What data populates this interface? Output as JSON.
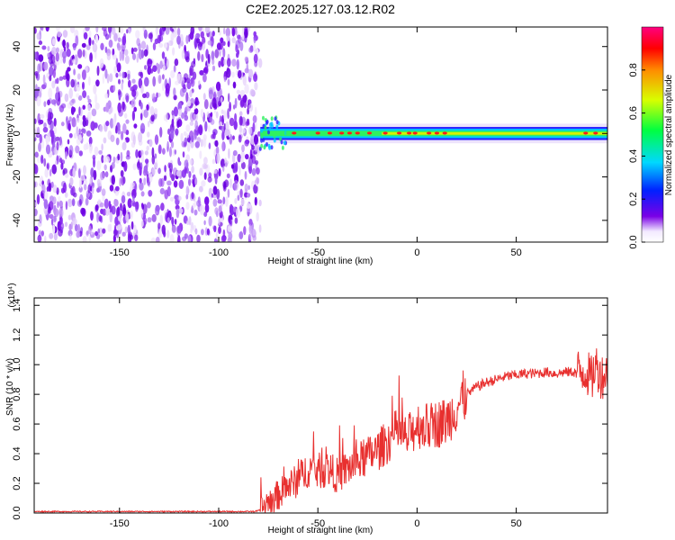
{
  "title": "C2E2.2025.127.03.12.R02",
  "colors": {
    "snr_line": "#e8302f",
    "frame": "#000000",
    "spectrum_base": "#7a00e6"
  },
  "chart_data": [
    {
      "type": "heatmap",
      "title": "C2E2.2025.127.03.12.R02",
      "xlabel": "Height of straight line (km)",
      "ylabel": "Frequency (Hz)",
      "xlim": [
        -193,
        96
      ],
      "ylim": [
        -50,
        49
      ],
      "xticks": [
        -150,
        -100,
        -50,
        0,
        50
      ],
      "xtick_labels": [
        "-150",
        "-100",
        "-50",
        "0",
        "50"
      ],
      "yticks": [
        -40,
        -20,
        0,
        20,
        40
      ],
      "ytick_labels": [
        "-40",
        "-20",
        "0",
        "20",
        "40"
      ],
      "noise_region_x": [
        -193,
        -79
      ],
      "signal_region_x": [
        -79,
        96
      ],
      "signal_center_frequency_hz": 0,
      "signal_halfwidth_hz": 3,
      "colorbar": {
        "label": "Normalized spectral amplitude",
        "range": [
          0,
          1
        ],
        "ticks": [
          0.0,
          0.2,
          0.4,
          0.6,
          0.8
        ],
        "tick_labels": [
          "0.0",
          "0.2",
          "0.4",
          "0.6",
          "0.8"
        ],
        "colormap": "rainbow (purple-blue-cyan-green-yellow-red-magenta)"
      },
      "grid": false
    },
    {
      "type": "line",
      "xlabel": "Height of straight line (km)",
      "ylabel": "SNR (10 * v/v)",
      "y_scale_label": "(x10⁴)",
      "xlim": [
        -193,
        96
      ],
      "ylim": [
        0,
        1.45
      ],
      "xticks": [
        -150,
        -100,
        -50,
        0,
        50
      ],
      "xtick_labels": [
        "-150",
        "-100",
        "-50",
        "0",
        "50"
      ],
      "yticks": [
        0.0,
        0.2,
        0.4,
        0.6,
        0.8,
        1.0,
        1.2,
        1.4
      ],
      "ytick_labels": [
        "0.0",
        "0.2",
        "0.4",
        "0.6",
        "0.8",
        "1.0",
        "1.2",
        "1.4"
      ],
      "grid": false,
      "series": [
        {
          "x": [
            -193,
            -170,
            -150,
            -120,
            -100,
            -90,
            -82,
            -79,
            -75,
            -70,
            -65,
            -60,
            -55,
            -50,
            -45,
            -40,
            -35,
            -30,
            -25,
            -20,
            -15,
            -10,
            -5,
            0,
            5,
            10,
            15,
            20,
            25,
            30,
            35,
            40,
            45,
            50,
            55,
            60,
            65,
            70,
            75,
            80,
            85,
            88,
            90,
            93,
            96
          ],
          "values": [
            0.01,
            0.01,
            0.01,
            0.01,
            0.01,
            0.01,
            0.01,
            0.02,
            0.08,
            0.12,
            0.18,
            0.22,
            0.3,
            0.28,
            0.3,
            0.25,
            0.3,
            0.34,
            0.38,
            0.42,
            0.48,
            0.55,
            0.5,
            0.6,
            0.58,
            0.6,
            0.62,
            0.72,
            0.8,
            0.85,
            0.88,
            0.9,
            0.92,
            0.93,
            0.94,
            0.94,
            0.95,
            0.94,
            0.95,
            0.95,
            0.96,
            0.9,
            1.0,
            0.92,
            0.95
          ]
        }
      ]
    }
  ]
}
